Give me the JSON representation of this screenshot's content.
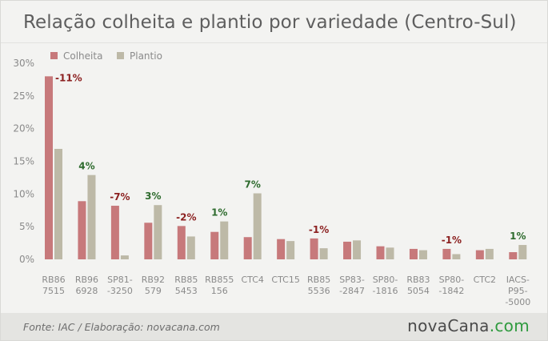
{
  "chart_data": {
    "type": "bar",
    "title": "Relação colheita e plantio por variedade (Centro-Sul)",
    "xlabel": "",
    "ylabel": "",
    "ylim": [
      0,
      30
    ],
    "yticks": [
      "0%",
      "5%",
      "10%",
      "15%",
      "20%",
      "25%",
      "30%"
    ],
    "grid": false,
    "legend_position": "top-left",
    "categories": [
      [
        "RB86",
        "7515"
      ],
      [
        "RB96",
        "6928"
      ],
      [
        "SP81-",
        "-3250"
      ],
      [
        "RB92",
        "579"
      ],
      [
        "RB85",
        "5453"
      ],
      [
        "RB855",
        "156"
      ],
      [
        "CTC4"
      ],
      [
        "CTC15"
      ],
      [
        "RB85",
        "5536"
      ],
      [
        "SP83-",
        "-2847"
      ],
      [
        "SP80-",
        "-1816"
      ],
      [
        "RB83",
        "5054"
      ],
      [
        "SP80-",
        "-1842"
      ],
      [
        "CTC2"
      ],
      [
        "IACS-",
        "P95-",
        "-5000"
      ]
    ],
    "series": [
      {
        "name": "Colheita",
        "color": "#c7797b",
        "values": [
          28.0,
          8.9,
          8.2,
          5.6,
          5.1,
          4.2,
          3.4,
          3.1,
          3.2,
          2.7,
          2.0,
          1.6,
          1.6,
          1.4,
          1.1
        ]
      },
      {
        "name": "Plantio",
        "color": "#bdb9a7",
        "values": [
          16.9,
          12.9,
          0.6,
          8.3,
          3.5,
          5.8,
          10.1,
          2.8,
          1.7,
          2.9,
          1.8,
          1.4,
          0.8,
          1.6,
          2.2
        ]
      }
    ],
    "annotations": [
      {
        "category": 0,
        "text": "-11%",
        "color": "#8b1f1f"
      },
      {
        "category": 1,
        "text": "4%",
        "color": "#2e6b2e"
      },
      {
        "category": 2,
        "text": "-7%",
        "color": "#8b1f1f"
      },
      {
        "category": 3,
        "text": "3%",
        "color": "#2e6b2e"
      },
      {
        "category": 4,
        "text": "-2%",
        "color": "#8b1f1f"
      },
      {
        "category": 5,
        "text": "1%",
        "color": "#2e6b2e"
      },
      {
        "category": 6,
        "text": "7%",
        "color": "#2e6b2e"
      },
      {
        "category": 8,
        "text": "-1%",
        "color": "#8b1f1f"
      },
      {
        "category": 12,
        "text": "-1%",
        "color": "#8b1f1f"
      },
      {
        "category": 14,
        "text": "1%",
        "color": "#2e6b2e"
      }
    ]
  },
  "footer": {
    "source": "Fonte: IAC / Elaboração: novacana.com"
  },
  "logo": {
    "part1": "nova",
    "part2": "Cana",
    "dot": ".",
    "part3": "com"
  }
}
